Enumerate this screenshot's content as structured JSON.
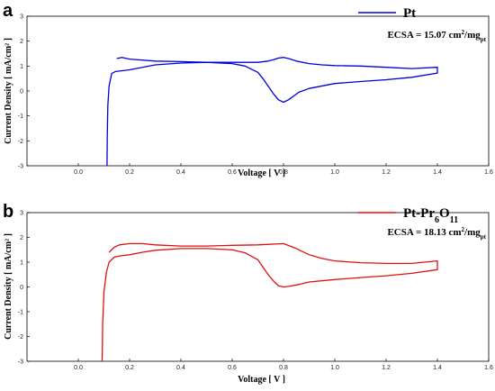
{
  "chart_data": [
    {
      "type": "line",
      "panel_label": "a",
      "xlabel": "Voltage [ V ]",
      "ylabel": "Current Density [ mA/cm² ]",
      "xlim": [
        -0.2,
        1.6
      ],
      "ylim": [
        -3,
        3
      ],
      "xticks": [
        "0.0",
        "0.2",
        "0.4",
        "0.6",
        "0.8",
        "1.0",
        "1.2",
        "1.4",
        "1.6"
      ],
      "yticks": [
        "-3",
        "-2",
        "-1",
        "0",
        "1",
        "2",
        "3"
      ],
      "legend_position": "top-right",
      "color": "#0000dd",
      "series": [
        {
          "name": "Pt",
          "x": [
            0.112,
            0.113,
            0.115,
            0.12,
            0.13,
            0.145,
            0.16,
            0.2,
            0.3,
            0.4,
            0.5,
            0.6,
            0.65,
            0.7,
            0.72,
            0.74,
            0.76,
            0.78,
            0.8,
            0.82,
            0.86,
            0.9,
            1.0,
            1.1,
            1.2,
            1.3,
            1.4,
            1.4,
            1.3,
            1.2,
            1.1,
            1.0,
            0.95,
            0.9,
            0.85,
            0.82,
            0.8,
            0.78,
            0.76,
            0.74,
            0.7,
            0.6,
            0.5,
            0.4,
            0.3,
            0.2,
            0.17,
            0.15
          ],
          "y": [
            -3.0,
            -1.8,
            -0.6,
            0.2,
            0.7,
            0.78,
            0.8,
            0.85,
            1.05,
            1.12,
            1.15,
            1.1,
            1.0,
            0.75,
            0.5,
            0.2,
            -0.1,
            -0.35,
            -0.45,
            -0.35,
            -0.05,
            0.1,
            0.3,
            0.38,
            0.45,
            0.55,
            0.72,
            0.95,
            0.9,
            0.95,
            1.0,
            1.02,
            1.05,
            1.1,
            1.2,
            1.3,
            1.35,
            1.32,
            1.25,
            1.2,
            1.15,
            1.15,
            1.15,
            1.18,
            1.2,
            1.28,
            1.35,
            1.3
          ]
        }
      ],
      "annotation": {
        "prefix": "ECSA = 15.07 cm",
        "sup": "2",
        "mid": "/mg",
        "sub": "pt"
      }
    },
    {
      "type": "line",
      "panel_label": "b",
      "xlabel": "Voltage [ V ]",
      "ylabel": "Current Density [ mA/cm² ]",
      "xlim": [
        -0.2,
        1.6
      ],
      "ylim": [
        -3,
        3
      ],
      "xticks": [
        "0.0",
        "0.2",
        "0.4",
        "0.6",
        "0.8",
        "1.0",
        "1.2",
        "1.4",
        "1.6"
      ],
      "yticks": [
        "-3",
        "-2",
        "-1",
        "0",
        "1",
        "2",
        "3"
      ],
      "legend_position": "top-right",
      "color": "#e01010",
      "series": [
        {
          "name": "Pt-Pr6O11",
          "x": [
            0.093,
            0.095,
            0.1,
            0.11,
            0.12,
            0.14,
            0.16,
            0.2,
            0.25,
            0.3,
            0.4,
            0.5,
            0.6,
            0.65,
            0.7,
            0.72,
            0.74,
            0.76,
            0.78,
            0.8,
            0.82,
            0.86,
            0.9,
            1.0,
            1.1,
            1.2,
            1.3,
            1.4,
            1.4,
            1.3,
            1.2,
            1.1,
            1.0,
            0.95,
            0.9,
            0.85,
            0.8,
            0.7,
            0.6,
            0.5,
            0.4,
            0.3,
            0.25,
            0.2,
            0.16,
            0.14,
            0.12
          ],
          "y": [
            -3.0,
            -1.5,
            -0.2,
            0.6,
            1.0,
            1.2,
            1.25,
            1.3,
            1.4,
            1.48,
            1.55,
            1.55,
            1.5,
            1.38,
            1.1,
            0.8,
            0.5,
            0.25,
            0.05,
            0.0,
            0.02,
            0.1,
            0.2,
            0.3,
            0.38,
            0.45,
            0.55,
            0.7,
            1.05,
            0.95,
            0.95,
            0.98,
            1.05,
            1.15,
            1.3,
            1.55,
            1.75,
            1.7,
            1.68,
            1.65,
            1.65,
            1.7,
            1.75,
            1.75,
            1.7,
            1.6,
            1.4
          ]
        }
      ],
      "legend_label_parts": {
        "base": "Pt-Pr",
        "sub1": "6",
        "mid": "O",
        "sub2": "11"
      },
      "annotation": {
        "prefix": "ECSA = 18.13 cm",
        "sup": "2",
        "mid": "/mg",
        "sub": "pt"
      }
    }
  ]
}
